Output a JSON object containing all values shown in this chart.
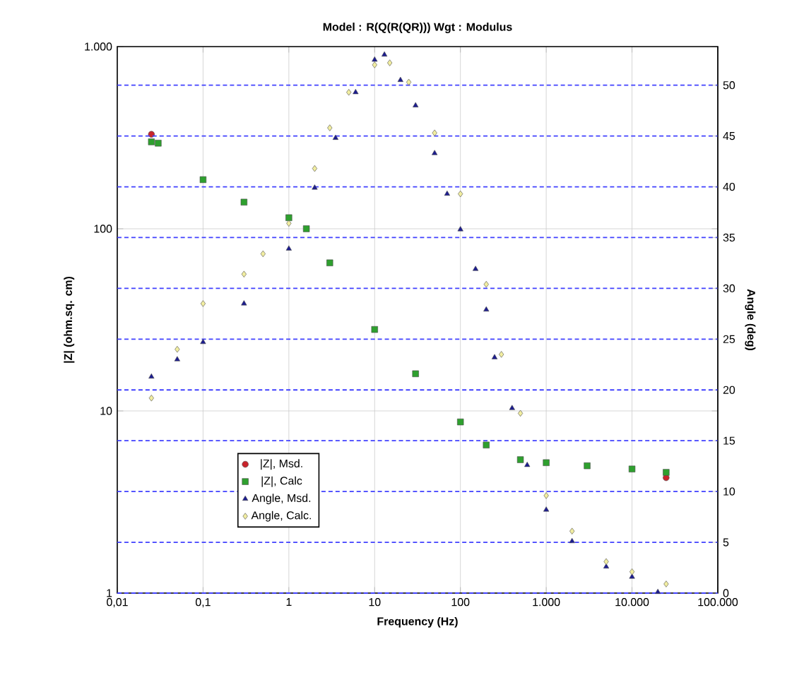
{
  "chart_data": {
    "type": "scatter",
    "title": "Model : R(Q(R(QR)))     Wgt : Modulus",
    "xlabel": "Frequency (Hz)",
    "ylabel": "|Z|  (ohm.sq. cm)",
    "y2label": "Angle  (deg)",
    "log": "xy",
    "grid": true,
    "legend": "bottom left",
    "xlim": [
      0.01,
      100000
    ],
    "xticks": [
      {
        "value": 0.01,
        "label": "0,01"
      },
      {
        "value": 0.1,
        "label": "0,1"
      },
      1,
      10,
      100,
      {
        "value": 1000,
        "label": "1.000"
      },
      {
        "value": 10000,
        "label": "10.000"
      },
      {
        "value": 100000,
        "label": "100.000"
      }
    ],
    "ylim": [
      1,
      1000
    ],
    "yticks": [
      1,
      10,
      100,
      {
        "value": 1000,
        "label": "1.000"
      }
    ],
    "y2lim": [
      0,
      53.8
    ],
    "y2ticks": [
      0,
      5,
      10,
      15,
      20,
      25,
      30,
      35,
      40,
      45,
      50
    ],
    "series": [
      {
        "name": "|Z|, Msd.",
        "color": "#c8242c",
        "marker": "circle",
        "x": [
          0.025,
          25000
        ],
        "values": [
          330,
          4.3
        ]
      },
      {
        "name": "|Z|, Calc",
        "color": "#2ea02e",
        "marker": "square",
        "x": [
          0.025,
          0.03,
          0.1,
          0.3,
          1,
          1.6,
          3,
          10,
          30,
          100,
          200,
          500,
          1000,
          3000,
          10000,
          25000
        ],
        "values": [
          300,
          295,
          186,
          140,
          115,
          100,
          65,
          28,
          16,
          8.7,
          6.5,
          5.4,
          5.2,
          5,
          4.8,
          4.6
        ]
      },
      {
        "name": "Angle, Msd.",
        "color": "#1c1c90",
        "marker": "triangle",
        "axis": "y2",
        "x": [
          0.025,
          0.05,
          0.1,
          0.3,
          1,
          2,
          3.5,
          6,
          10,
          13,
          20,
          30,
          50,
          70,
          100,
          150,
          200,
          250,
          400,
          600,
          1000,
          2000,
          5000,
          10000,
          20000
        ],
        "values": [
          21.3,
          23,
          24.7,
          28.5,
          33.9,
          39.9,
          44.8,
          49.3,
          52.5,
          53,
          50.5,
          48,
          43.3,
          39.3,
          35.8,
          31.9,
          27.9,
          23.2,
          18.2,
          12.6,
          8.2,
          5.1,
          2.6,
          1.6,
          0.1
        ]
      },
      {
        "name": "Angle, Calc.",
        "color": "#f2eea0",
        "marker": "diamond",
        "axis": "y2",
        "x": [
          0.025,
          0.05,
          0.1,
          0.3,
          0.5,
          1,
          2,
          3,
          5,
          10,
          15,
          25,
          50,
          100,
          200,
          300,
          500,
          1000,
          2000,
          5000,
          10000,
          25000
        ],
        "values": [
          19.2,
          24,
          28.5,
          31.4,
          33.4,
          36.4,
          41.8,
          45.8,
          49.3,
          52,
          52.2,
          50.3,
          45.3,
          39.3,
          30.4,
          23.5,
          17.7,
          9.6,
          6.1,
          3.1,
          2.1,
          0.9
        ]
      }
    ]
  }
}
